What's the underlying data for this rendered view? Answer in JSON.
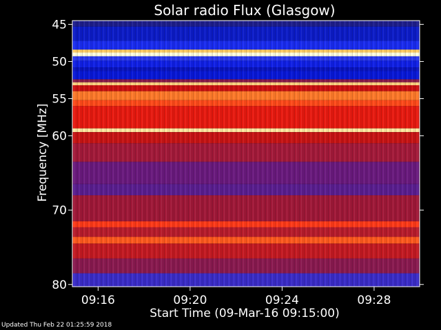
{
  "chart_data": {
    "type": "heatmap",
    "title": "Solar radio Flux (Glasgow)",
    "ylabel": "Frequency [MHz]",
    "xlabel": "Start Time (09-Mar-16 09:15:00)",
    "x_ticks": [
      "09:16",
      "09:20",
      "09:24",
      "09:28"
    ],
    "x_tick_minutes": [
      1,
      5,
      9,
      13
    ],
    "xlim_minutes": [
      -0.12,
      14.98
    ],
    "y_ticks": [
      45,
      50,
      55,
      60,
      70,
      80
    ],
    "ylim": [
      44.5,
      80.3
    ],
    "bands": [
      {
        "from": 44.5,
        "to": 45.3,
        "color": "#1e1e8c"
      },
      {
        "from": 45.3,
        "to": 47.2,
        "color": "#0c1cc8"
      },
      {
        "from": 47.2,
        "to": 48.4,
        "color": "#1a2cf0"
      },
      {
        "from": 48.4,
        "to": 48.8,
        "color": "#ffcc66"
      },
      {
        "from": 48.8,
        "to": 49.3,
        "color": "#ffffe0"
      },
      {
        "from": 49.3,
        "to": 49.9,
        "color": "#2a38f0"
      },
      {
        "from": 49.9,
        "to": 50.8,
        "color": "#1020e6"
      },
      {
        "from": 50.8,
        "to": 51.3,
        "color": "#0a14c0"
      },
      {
        "from": 51.3,
        "to": 52.4,
        "color": "#0818d8"
      },
      {
        "from": 52.4,
        "to": 52.8,
        "color": "#8a1a4a"
      },
      {
        "from": 52.8,
        "to": 53.2,
        "color": "#ffd080"
      },
      {
        "from": 53.2,
        "to": 54.0,
        "color": "#cc1010"
      },
      {
        "from": 54.0,
        "to": 55.2,
        "color": "#ff7a2a"
      },
      {
        "from": 55.2,
        "to": 56.0,
        "color": "#ff4a1a"
      },
      {
        "from": 56.0,
        "to": 59.0,
        "color": "#e81a10"
      },
      {
        "from": 59.0,
        "to": 59.5,
        "color": "#ffe8a0"
      },
      {
        "from": 59.5,
        "to": 61.0,
        "color": "#c81414"
      },
      {
        "from": 61.0,
        "to": 63.5,
        "color": "#a41a3a"
      },
      {
        "from": 63.5,
        "to": 66.5,
        "color": "#6a1a7e"
      },
      {
        "from": 66.5,
        "to": 68.0,
        "color": "#5a1e90"
      },
      {
        "from": 68.0,
        "to": 71.5,
        "color": "#a01838"
      },
      {
        "from": 71.5,
        "to": 72.3,
        "color": "#ff3a18"
      },
      {
        "from": 72.3,
        "to": 73.6,
        "color": "#b81c2c"
      },
      {
        "from": 73.6,
        "to": 74.5,
        "color": "#ff5a1e"
      },
      {
        "from": 74.5,
        "to": 76.5,
        "color": "#c41a22"
      },
      {
        "from": 76.5,
        "to": 78.5,
        "color": "#8a1a50"
      },
      {
        "from": 78.5,
        "to": 80.3,
        "color": "#3a2cc8"
      }
    ],
    "colors": {
      "background": "#000000",
      "axis": "#ffffff",
      "text": "#ffffff"
    }
  },
  "footer": "Updated Thu Feb 22 01:25:59 2018"
}
